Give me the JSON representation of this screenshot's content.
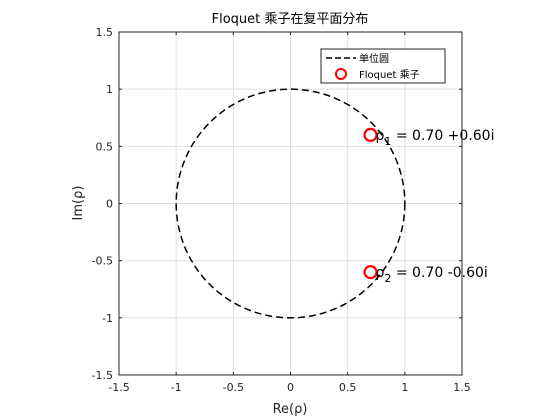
{
  "chart_data": {
    "type": "scatter",
    "title": "Floquet 乘子在复平面分布",
    "xlabel": "Re(ρ)",
    "ylabel": "Im(ρ)",
    "xlim": [
      -1.5,
      1.5
    ],
    "ylim": [
      -1.5,
      1.5
    ],
    "xticks": [
      -1.5,
      -1,
      -0.5,
      0,
      0.5,
      1,
      1.5
    ],
    "yticks": [
      -1.5,
      -1,
      -0.5,
      0,
      0.5,
      1,
      1.5
    ],
    "xtick_labels": [
      "-1.5",
      "-1",
      "-0.5",
      "0",
      "0.5",
      "1",
      "1.5"
    ],
    "ytick_labels": [
      "-1.5",
      "-1",
      "-0.5",
      "0",
      "0.5",
      "1",
      "1.5"
    ],
    "grid": true,
    "legend_position": "top-right",
    "series": [
      {
        "name": "单位圆",
        "kind": "line",
        "style": "dashed",
        "color": "#000000",
        "shape": "circle",
        "center": [
          0,
          0
        ],
        "radius": 1
      },
      {
        "name": "Floquet 乘子",
        "kind": "marker",
        "marker": "circle-open",
        "color": "#ff0000",
        "points": [
          {
            "x": 0.7,
            "y": 0.6
          },
          {
            "x": 0.7,
            "y": -0.6
          }
        ]
      }
    ],
    "annotations": [
      {
        "x": 0.7,
        "y": 0.6,
        "symbol": "ρ",
        "sub": "1",
        "text": " = 0.70 +0.60i"
      },
      {
        "x": 0.7,
        "y": -0.6,
        "symbol": "ρ",
        "sub": "2",
        "text": " = 0.70 -0.60i"
      }
    ]
  }
}
